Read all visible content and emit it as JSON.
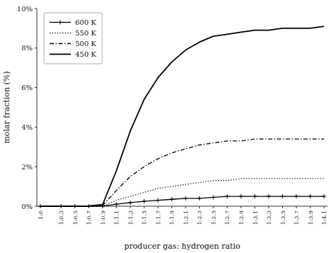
{
  "chart_data": {
    "type": "line",
    "xlabel": "producer gas: hydrogen ratio",
    "ylabel": "molar fraction (%)",
    "x": [
      0.0,
      0.3,
      0.5,
      0.7,
      0.9,
      1.1,
      1.3,
      1.5,
      1.7,
      1.9,
      2.1,
      2.3,
      2.5,
      2.7,
      2.9,
      3.1,
      3.3,
      3.5,
      3.7,
      3.9,
      4.1
    ],
    "xlim": [
      -0.05,
      4.15
    ],
    "xticks": [
      {
        "value": 0.0,
        "label": "1:0"
      },
      {
        "value": 0.3,
        "label": "1:0.3"
      },
      {
        "value": 0.5,
        "label": "1:0.5"
      },
      {
        "value": 0.7,
        "label": "1:0.7"
      },
      {
        "value": 0.9,
        "label": "1:0.9"
      },
      {
        "value": 1.1,
        "label": "1:1.1"
      },
      {
        "value": 1.3,
        "label": "1:1.3"
      },
      {
        "value": 1.5,
        "label": "1:1.5"
      },
      {
        "value": 1.7,
        "label": "1:1.7"
      },
      {
        "value": 1.9,
        "label": "1:1.9"
      },
      {
        "value": 2.1,
        "label": "1:2.1"
      },
      {
        "value": 2.3,
        "label": "1:2.3"
      },
      {
        "value": 2.5,
        "label": "1:2.5"
      },
      {
        "value": 2.7,
        "label": "1:2.7"
      },
      {
        "value": 2.9,
        "label": "1:2.9"
      },
      {
        "value": 3.1,
        "label": "1:3.1"
      },
      {
        "value": 3.3,
        "label": "1:3.3"
      },
      {
        "value": 3.5,
        "label": "1:3.5"
      },
      {
        "value": 3.7,
        "label": "1:3.7"
      },
      {
        "value": 3.9,
        "label": "1:3.9"
      },
      {
        "value": 4.1,
        "label": "1:4.1"
      }
    ],
    "ylim": [
      0,
      0.1
    ],
    "yticks": [
      {
        "value": 0,
        "label": "0%"
      },
      {
        "value": 0.02,
        "label": "2%"
      },
      {
        "value": 0.04,
        "label": "4%"
      },
      {
        "value": 0.06,
        "label": "6%"
      },
      {
        "value": 0.08,
        "label": "8%"
      },
      {
        "value": 0.1,
        "label": "10%"
      }
    ],
    "grid": false,
    "legend": "upper left",
    "series": [
      {
        "name": "600 K",
        "color": "#000000",
        "line_style": "solid",
        "marker": "+",
        "values": [
          0.0,
          0.0,
          0.0,
          0.0,
          5e-05,
          0.001,
          0.0018,
          0.0025,
          0.003,
          0.0035,
          0.004,
          0.004,
          0.0045,
          0.005,
          0.005,
          0.005,
          0.005,
          0.005,
          0.005,
          0.005,
          0.005
        ]
      },
      {
        "name": "550 K",
        "color": "#000000",
        "line_style": "dotted",
        "values": [
          0.0,
          0.0,
          0.0,
          0.0,
          0.0001,
          0.003,
          0.005,
          0.007,
          0.009,
          0.01,
          0.011,
          0.012,
          0.013,
          0.013,
          0.014,
          0.014,
          0.014,
          0.014,
          0.014,
          0.014,
          0.014
        ]
      },
      {
        "name": "500 K",
        "color": "#000000",
        "line_style": "dashdot",
        "values": [
          0.0,
          0.0,
          0.0,
          0.0001,
          0.0004,
          0.008,
          0.015,
          0.02,
          0.024,
          0.027,
          0.029,
          0.031,
          0.032,
          0.033,
          0.033,
          0.034,
          0.034,
          0.034,
          0.034,
          0.034,
          0.034
        ]
      },
      {
        "name": "450 K",
        "color": "#000000",
        "line_style": "solid",
        "values": [
          0.0,
          0.0,
          0.0,
          0.0001,
          0.0008,
          0.018,
          0.038,
          0.054,
          0.065,
          0.073,
          0.079,
          0.083,
          0.086,
          0.087,
          0.088,
          0.089,
          0.089,
          0.09,
          0.09,
          0.09,
          0.091
        ]
      }
    ]
  }
}
